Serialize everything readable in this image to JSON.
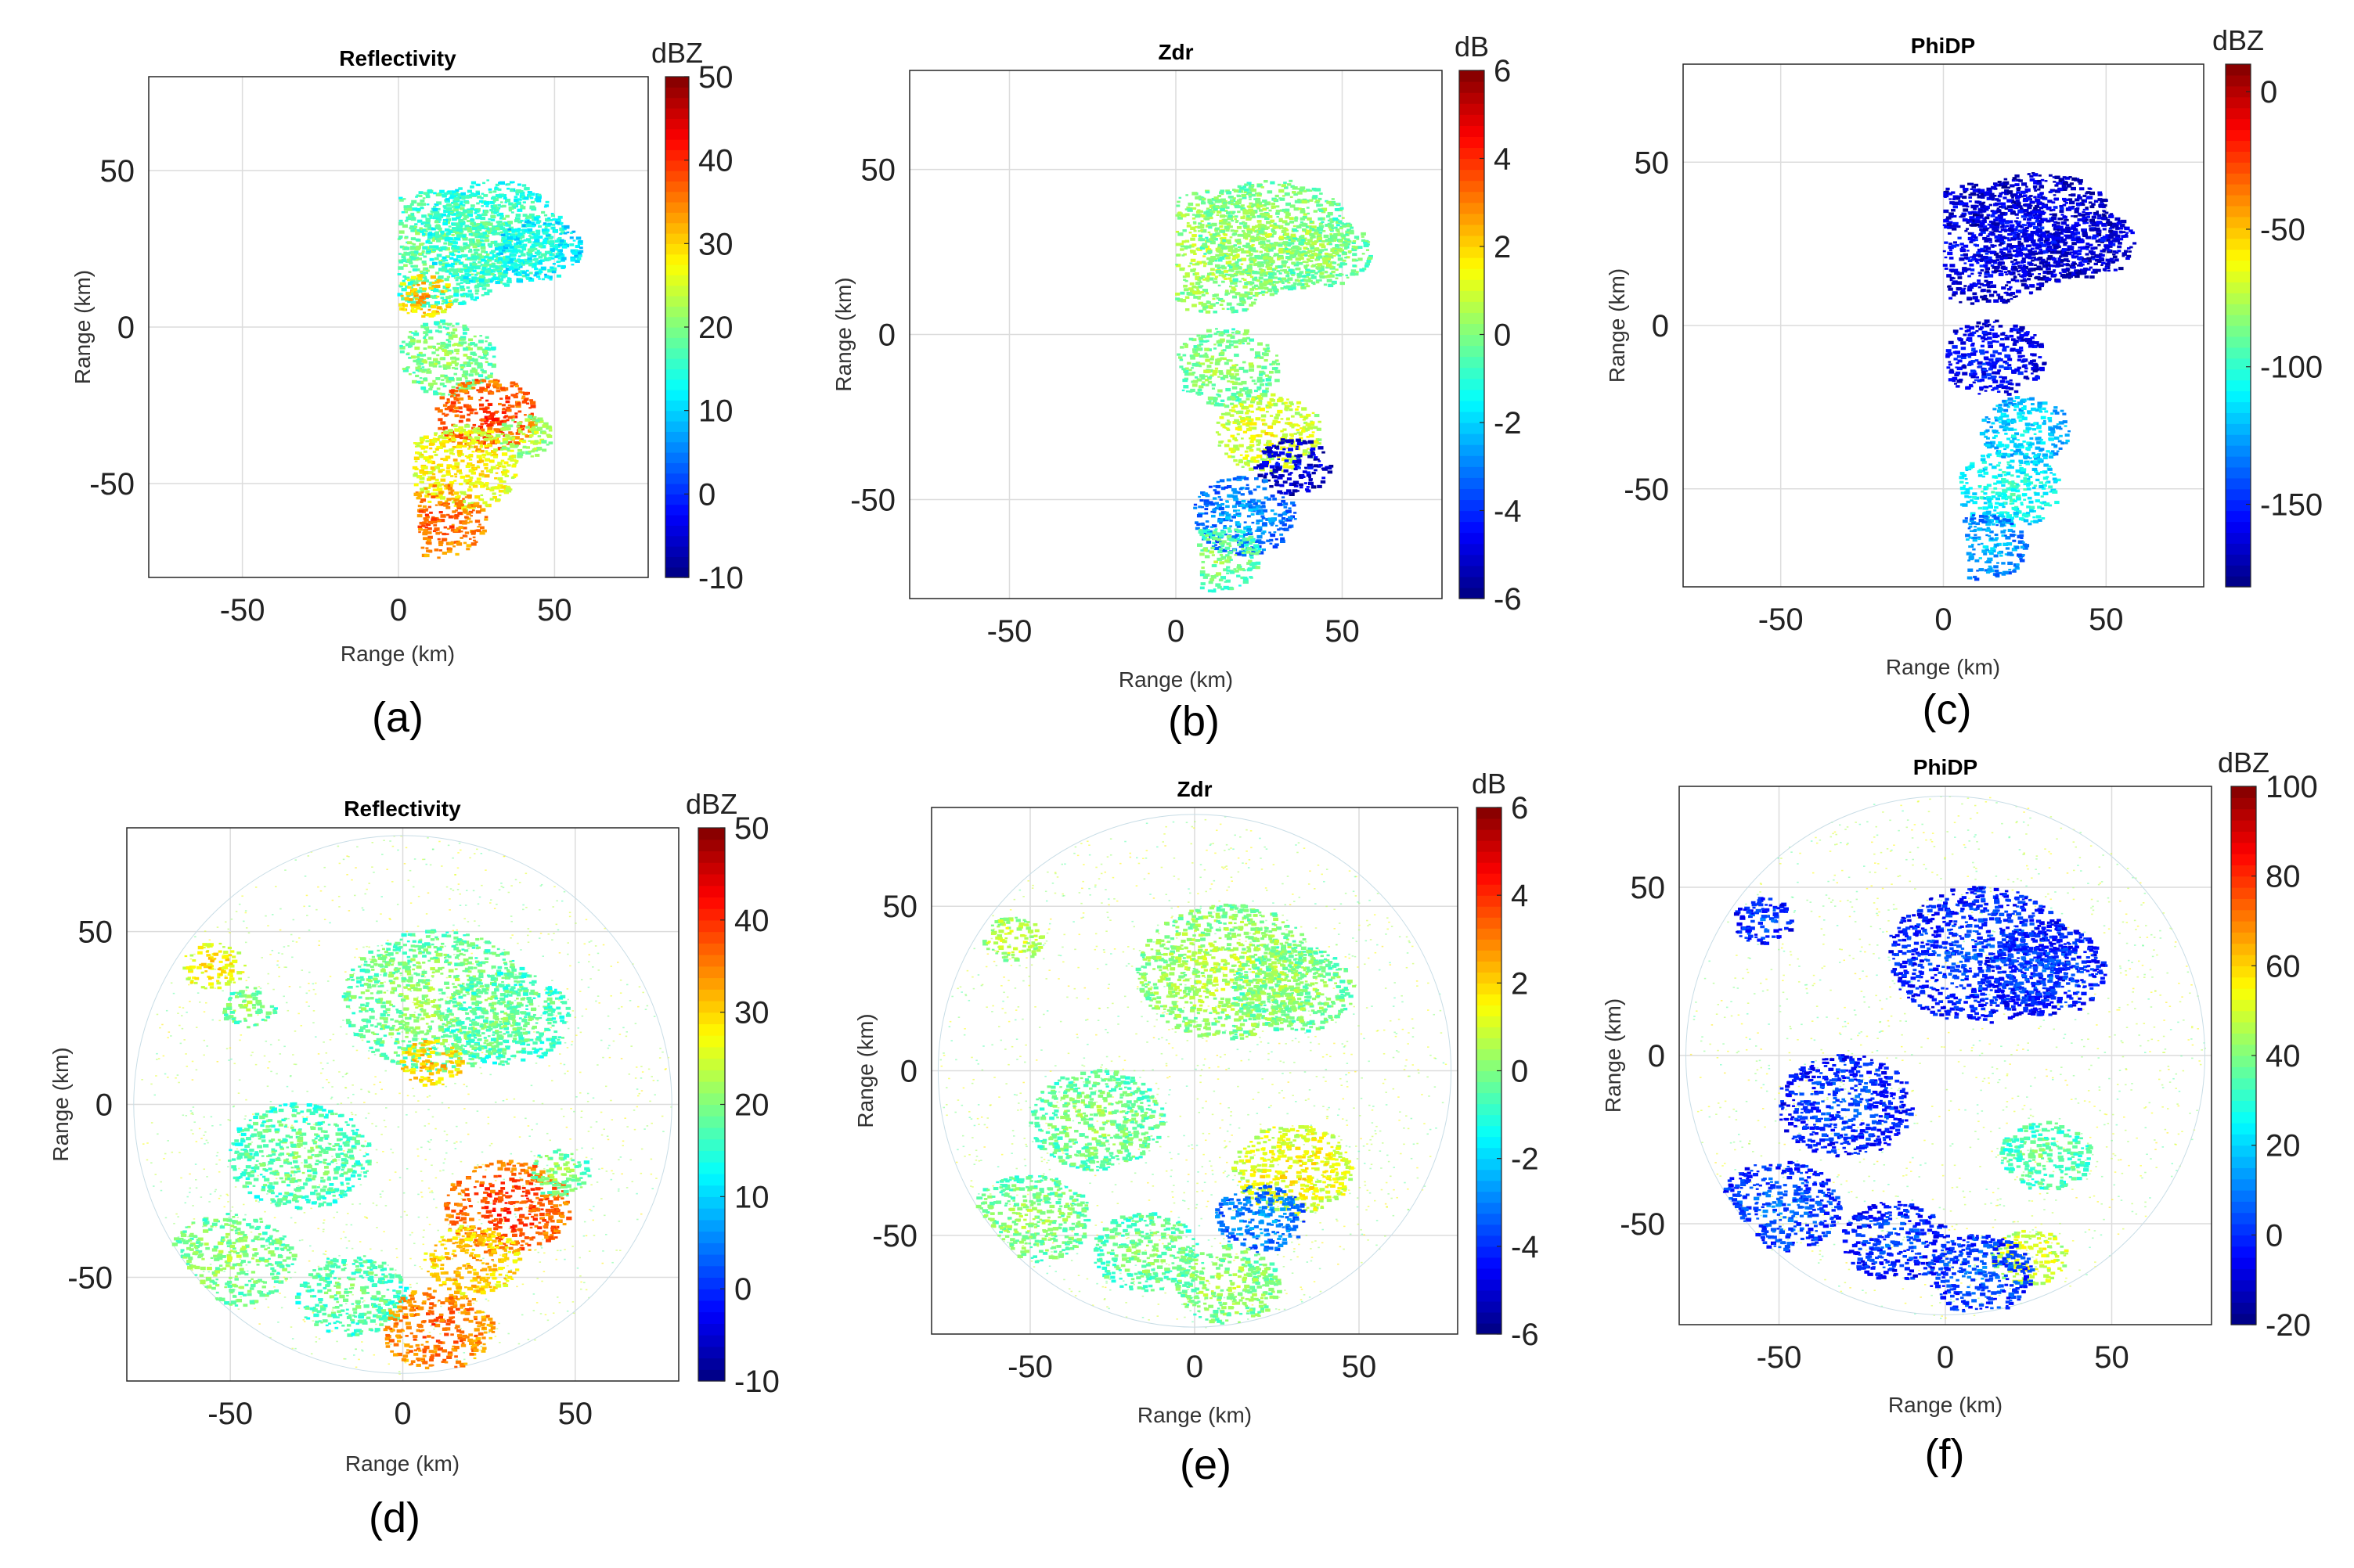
{
  "chart_data": [
    {
      "type": "heatmap",
      "panel_label": "(a)",
      "title": "Reflectivity",
      "xlabel": "Range (km)",
      "ylabel": "Range (km)",
      "xlim": [
        -80,
        80
      ],
      "ylim": [
        -80,
        80
      ],
      "xticks": [
        -50,
        0,
        50
      ],
      "yticks": [
        -50,
        0,
        50
      ],
      "colorbar": {
        "label": "dBZ",
        "range": [
          -10,
          50
        ],
        "ticks": [
          -10,
          0,
          10,
          20,
          30,
          40,
          50
        ]
      },
      "coverage": "sector",
      "echo_regions": [
        {
          "x": 12,
          "y": 25,
          "r": 22,
          "v": 20
        },
        {
          "x": 30,
          "y": 30,
          "r": 20,
          "v": 18
        },
        {
          "x": 45,
          "y": 25,
          "r": 12,
          "v": 15
        },
        {
          "x": 8,
          "y": 10,
          "r": 8,
          "v": 33
        },
        {
          "x": 15,
          "y": -10,
          "r": 14,
          "v": 22
        },
        {
          "x": 28,
          "y": -28,
          "r": 14,
          "v": 40
        },
        {
          "x": 20,
          "y": -45,
          "r": 16,
          "v": 30
        },
        {
          "x": 12,
          "y": -62,
          "r": 14,
          "v": 38
        },
        {
          "x": 40,
          "y": -35,
          "r": 8,
          "v": 25
        }
      ]
    },
    {
      "type": "heatmap",
      "panel_label": "(b)",
      "title": "Zdr",
      "xlabel": "Range (km)",
      "ylabel": "Range (km)",
      "xlim": [
        -80,
        80
      ],
      "ylim": [
        -80,
        80
      ],
      "xticks": [
        -50,
        0,
        50
      ],
      "yticks": [
        -50,
        0,
        50
      ],
      "colorbar": {
        "label": "dB",
        "range": [
          -6,
          6
        ],
        "ticks": [
          -6,
          -4,
          -2,
          0,
          2,
          4,
          6
        ]
      },
      "coverage": "sector",
      "echo_regions": [
        {
          "x": 12,
          "y": 25,
          "r": 22,
          "v": 0.8
        },
        {
          "x": 30,
          "y": 30,
          "r": 20,
          "v": 0.6
        },
        {
          "x": 45,
          "y": 25,
          "r": 12,
          "v": 0.4
        },
        {
          "x": 15,
          "y": -10,
          "r": 14,
          "v": 0.5
        },
        {
          "x": 28,
          "y": -30,
          "r": 14,
          "v": 1.5
        },
        {
          "x": 35,
          "y": -40,
          "r": 10,
          "v": -4.5
        },
        {
          "x": 20,
          "y": -55,
          "r": 14,
          "v": -2.5
        },
        {
          "x": 12,
          "y": -68,
          "r": 12,
          "v": 0.2
        }
      ]
    },
    {
      "type": "heatmap",
      "panel_label": "(c)",
      "title": "PhiDP",
      "xlabel": "Range (km)",
      "ylabel": "Range (km)",
      "xlim": [
        -80,
        80
      ],
      "ylim": [
        -80,
        80
      ],
      "xticks": [
        -50,
        0,
        50
      ],
      "yticks": [
        -50,
        0,
        50
      ],
      "colorbar": {
        "label": "dBZ",
        "range": [
          -180,
          10
        ],
        "ticks": [
          0,
          -50,
          -100,
          -150
        ]
      },
      "coverage": "sector",
      "echo_regions": [
        {
          "x": 12,
          "y": 25,
          "r": 22,
          "v": -155
        },
        {
          "x": 30,
          "y": 30,
          "r": 20,
          "v": -155
        },
        {
          "x": 45,
          "y": 25,
          "r": 12,
          "v": -155
        },
        {
          "x": 15,
          "y": -10,
          "r": 14,
          "v": -150
        },
        {
          "x": 25,
          "y": -32,
          "r": 12,
          "v": -110
        },
        {
          "x": 20,
          "y": -50,
          "r": 14,
          "v": -100
        },
        {
          "x": 12,
          "y": -68,
          "r": 12,
          "v": -120
        }
      ]
    },
    {
      "type": "heatmap",
      "panel_label": "(d)",
      "title": "Reflectivity",
      "xlabel": "Range (km)",
      "ylabel": "Range (km)",
      "xlim": [
        -80,
        80
      ],
      "ylim": [
        -80,
        80
      ],
      "xticks": [
        -50,
        0,
        50
      ],
      "yticks": [
        -50,
        0,
        50
      ],
      "colorbar": {
        "label": "dBZ",
        "range": [
          -10,
          50
        ],
        "ticks": [
          -10,
          0,
          10,
          20,
          30,
          40,
          50
        ]
      },
      "coverage": "full_disk",
      "echo_regions": [
        {
          "x": 10,
          "y": 30,
          "r": 24,
          "v": 22
        },
        {
          "x": 30,
          "y": 25,
          "r": 16,
          "v": 20
        },
        {
          "x": 8,
          "y": 12,
          "r": 8,
          "v": 33
        },
        {
          "x": -55,
          "y": 40,
          "r": 8,
          "v": 30
        },
        {
          "x": -45,
          "y": 28,
          "r": 7,
          "v": 22
        },
        {
          "x": -30,
          "y": -15,
          "r": 18,
          "v": 20
        },
        {
          "x": -50,
          "y": -45,
          "r": 16,
          "v": 22
        },
        {
          "x": -15,
          "y": -55,
          "r": 14,
          "v": 20
        },
        {
          "x": 30,
          "y": -30,
          "r": 16,
          "v": 40
        },
        {
          "x": 20,
          "y": -45,
          "r": 12,
          "v": 33
        },
        {
          "x": 10,
          "y": -65,
          "r": 14,
          "v": 38
        },
        {
          "x": 45,
          "y": -20,
          "r": 8,
          "v": 22
        }
      ]
    },
    {
      "type": "heatmap",
      "panel_label": "(e)",
      "title": "Zdr",
      "xlabel": "Range (km)",
      "ylabel": "Range (km)",
      "xlim": [
        -80,
        80
      ],
      "ylim": [
        -80,
        80
      ],
      "xticks": [
        -50,
        0,
        50
      ],
      "yticks": [
        -50,
        0,
        50
      ],
      "colorbar": {
        "label": "dB",
        "range": [
          -6,
          6
        ],
        "ticks": [
          -6,
          -4,
          -2,
          0,
          2,
          4,
          6
        ]
      },
      "coverage": "full_disk",
      "echo_regions": [
        {
          "x": 10,
          "y": 30,
          "r": 24,
          "v": 0.8
        },
        {
          "x": 30,
          "y": 25,
          "r": 16,
          "v": 0.5
        },
        {
          "x": -55,
          "y": 40,
          "r": 8,
          "v": 1.2
        },
        {
          "x": -30,
          "y": -15,
          "r": 18,
          "v": 0.3
        },
        {
          "x": -50,
          "y": -45,
          "r": 16,
          "v": 0.4
        },
        {
          "x": -15,
          "y": -55,
          "r": 14,
          "v": 0.2
        },
        {
          "x": 30,
          "y": -30,
          "r": 16,
          "v": 1.8
        },
        {
          "x": 20,
          "y": -45,
          "r": 12,
          "v": -2.5
        },
        {
          "x": 10,
          "y": -65,
          "r": 14,
          "v": 0.6
        }
      ]
    },
    {
      "type": "heatmap",
      "panel_label": "(f)",
      "title": "PhiDP",
      "xlabel": "Range (km)",
      "ylabel": "Range (km)",
      "xlim": [
        -80,
        80
      ],
      "ylim": [
        -80,
        80
      ],
      "xticks": [
        -50,
        0,
        50
      ],
      "yticks": [
        -50,
        0,
        50
      ],
      "colorbar": {
        "label": "dBZ",
        "range": [
          -20,
          100
        ],
        "ticks": [
          -20,
          0,
          20,
          40,
          60,
          80,
          100
        ]
      },
      "coverage": "full_disk",
      "echo_regions": [
        {
          "x": 10,
          "y": 30,
          "r": 24,
          "v": 5
        },
        {
          "x": 30,
          "y": 25,
          "r": 16,
          "v": 5
        },
        {
          "x": -55,
          "y": 40,
          "r": 8,
          "v": 5
        },
        {
          "x": -30,
          "y": -15,
          "r": 18,
          "v": 5
        },
        {
          "x": -50,
          "y": -45,
          "r": 16,
          "v": 8
        },
        {
          "x": -15,
          "y": -55,
          "r": 14,
          "v": 5
        },
        {
          "x": 30,
          "y": -30,
          "r": 12,
          "v": 40
        },
        {
          "x": 25,
          "y": -60,
          "r": 10,
          "v": 55
        },
        {
          "x": 10,
          "y": -65,
          "r": 14,
          "v": 8
        }
      ]
    }
  ]
}
